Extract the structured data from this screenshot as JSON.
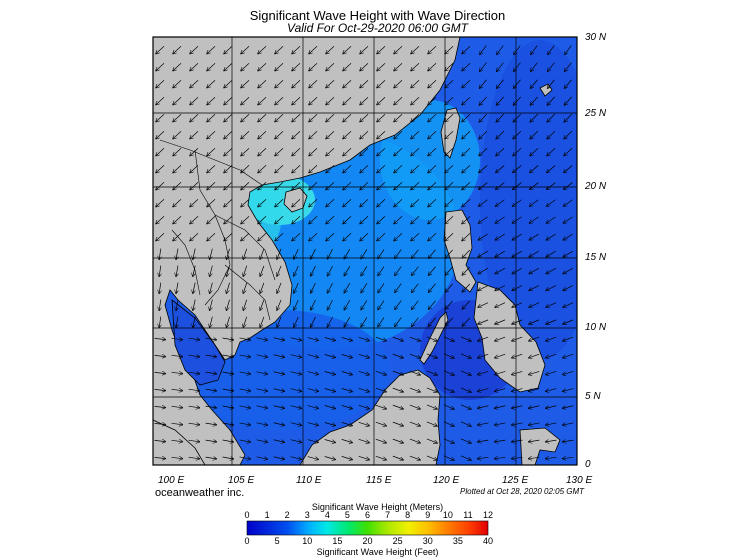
{
  "title": "Significant Wave Height with Wave Direction",
  "subtitle": "Valid For Oct-29-2020 06:00 GMT",
  "lat_labels": [
    "30 N",
    "25 N",
    "20 N",
    "15 N",
    "10 N",
    "5 N",
    "0"
  ],
  "lon_labels": [
    "100 E",
    "105 E",
    "110 E",
    "115 E",
    "120 E",
    "125 E",
    "130 E"
  ],
  "brand": "oceanweather inc.",
  "plotted": "Plotted at Oct 28, 2020 02:05 GMT",
  "colorbar": {
    "meters_title": "Significant Wave Height (Meters)",
    "meters_ticks": [
      "0",
      "1",
      "2",
      "3",
      "4",
      "5",
      "6",
      "7",
      "8",
      "9",
      "10",
      "11",
      "12"
    ],
    "feet_ticks": [
      "0",
      "5",
      "10",
      "15",
      "20",
      "25",
      "30",
      "35",
      "40"
    ],
    "feet_title": "Significant Wave Height (Feet)"
  },
  "colors": {
    "land": "#c0c0c0",
    "deep": "#1e3cd8",
    "sea": "#1e64f0",
    "mid": "#10a8f8",
    "high": "#40f0e0"
  }
}
